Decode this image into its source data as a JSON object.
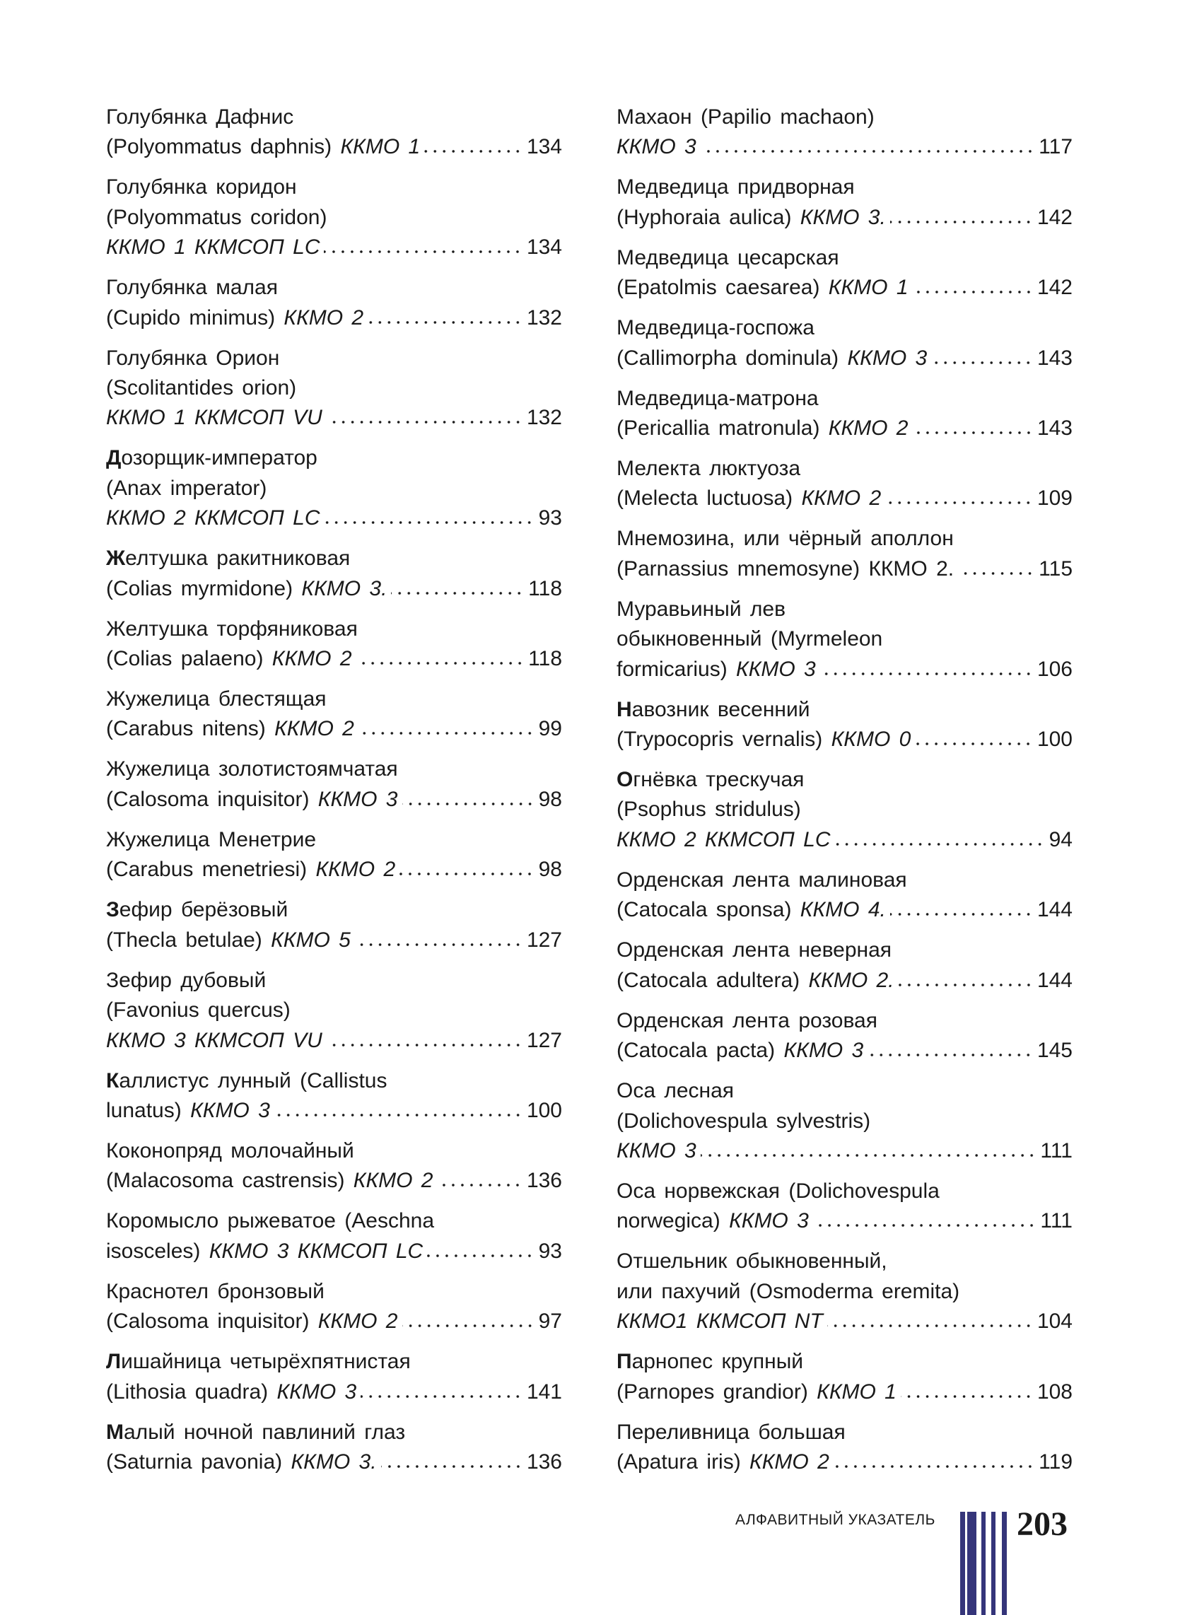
{
  "left_column": [
    {
      "lines": [
        "Голубянка Дафнис"
      ],
      "tail_plain": "(Polyommatus daphnis) ",
      "tail_italic": "ККМО 1",
      "page": "134"
    },
    {
      "lines": [
        "Голубянка коридон",
        "(Polyommatus coridon)"
      ],
      "tail_plain": "",
      "tail_italic": "ККМО 1 ККМСОП LC",
      "page": "134"
    },
    {
      "lines": [
        "Голубянка малая"
      ],
      "tail_plain": "(Cupido minimus) ",
      "tail_italic": "ККМО 2",
      "page": "132"
    },
    {
      "lines": [
        "Голубянка Орион",
        "(Scolitantides orion)"
      ],
      "tail_plain": "",
      "tail_italic": "ККМО 1 ККМСОП VU",
      "page": "132"
    },
    {
      "bold_initial": true,
      "lines": [
        "Дозорщик-император",
        "(Anax imperator)"
      ],
      "tail_plain": "",
      "tail_italic": "ККМО 2 ККМСОП LC",
      "page": "93"
    },
    {
      "bold_initial": true,
      "lines": [
        "Желтушка ракитниковая"
      ],
      "tail_plain": "(Colias myrmidone) ",
      "tail_italic": "ККМО 3.",
      "page": "118"
    },
    {
      "lines": [
        "Желтушка торфяниковая"
      ],
      "tail_plain": "(Colias palaeno) ",
      "tail_italic": "ККМО 2",
      "page": "118"
    },
    {
      "lines": [
        "Жужелица блестящая"
      ],
      "tail_plain": "(Carabus nitens) ",
      "tail_italic": "ККМО 2",
      "page": "99"
    },
    {
      "lines": [
        "Жужелица золотистоямчатая"
      ],
      "tail_plain": "(Calosoma inquisitor) ",
      "tail_italic": "ККМО 3",
      "page": "98"
    },
    {
      "lines": [
        "Жужелица Менетрие"
      ],
      "tail_plain": "(Carabus menetriesi) ",
      "tail_italic": "ККМО 2",
      "page": "98"
    },
    {
      "bold_initial": true,
      "lines": [
        "Зефир берёзовый"
      ],
      "tail_plain": "(Thecla betulae) ",
      "tail_italic": "ККМО 5",
      "page": "127"
    },
    {
      "lines": [
        "Зефир дубовый",
        "(Favonius quercus)"
      ],
      "tail_plain": "",
      "tail_italic": "ККМО 3 ККМСОП VU",
      "page": "127"
    },
    {
      "bold_initial": true,
      "lines": [
        "Каллистус лунный (Callistus"
      ],
      "tail_plain": "lunatus) ",
      "tail_italic": "ККМО 3",
      "page": "100"
    },
    {
      "lines": [
        "Коконопряд молочайный"
      ],
      "tail_plain": "(Malacosoma castrensis) ",
      "tail_italic": "ККМО 2",
      "page": "136"
    },
    {
      "lines": [
        "Коромысло рыжеватое (Aeschna"
      ],
      "tail_plain": "isosceles) ",
      "tail_italic": "ККМО 3 ККМСОП LC",
      "page": "93"
    },
    {
      "lines": [
        "Краснотел бронзовый"
      ],
      "tail_plain": "(Calosoma inquisitor) ",
      "tail_italic": "ККМО 2",
      "page": "97"
    },
    {
      "bold_initial": true,
      "lines": [
        "Лишайница четырёхпятнистая"
      ],
      "tail_plain": "(Lithosia quadra) ",
      "tail_italic": "ККМО 3",
      "page": "141"
    },
    {
      "bold_initial": true,
      "lines": [
        "Малый ночной павлиний глаз"
      ],
      "tail_plain": "(Saturnia pavonia) ",
      "tail_italic": "ККМО 3.",
      "page": "136"
    }
  ],
  "right_column": [
    {
      "lines": [
        "Махаон (Papilio machaon)"
      ],
      "tail_plain": "",
      "tail_italic": "ККМО 3",
      "page": "117"
    },
    {
      "lines": [
        "Медведица придворная"
      ],
      "tail_plain": "(Hyphoraia aulica) ",
      "tail_italic": "ККМО 3.",
      "page": "142"
    },
    {
      "lines": [
        "Медведица цесарская"
      ],
      "tail_plain": "(Epatolmis caesarea) ",
      "tail_italic": "ККМО 1",
      "page": "142"
    },
    {
      "lines": [
        "Медведица-госпожа"
      ],
      "tail_plain": "(Callimorpha dominula) ",
      "tail_italic": "ККМО 3",
      "page": "143"
    },
    {
      "lines": [
        "Медведица-матрона"
      ],
      "tail_plain": "(Pericallia matronula) ",
      "tail_italic": "ККМО 2",
      "page": "143"
    },
    {
      "lines": [
        "Мелекта люктуоза"
      ],
      "tail_plain": "(Melecta luctuosa) ",
      "tail_italic": "ККМО 2",
      "page": "109"
    },
    {
      "lines": [
        "Мнемозина, или чёрный аполлон"
      ],
      "tail_plain": "(Parnassius mnemosyne) ККМО 2.",
      "tail_italic": "",
      "page": "115"
    },
    {
      "lines": [
        "Муравьиный лев",
        "обыкновенный (Myrmeleon"
      ],
      "tail_plain": "formicarius) ",
      "tail_italic": "ККМО 3",
      "page": "106"
    },
    {
      "bold_initial": true,
      "lines": [
        "Навозник весенний"
      ],
      "tail_plain": "(Trypocopris vernalis) ",
      "tail_italic": "ККМО 0",
      "page": "100"
    },
    {
      "bold_initial": true,
      "lines": [
        "Огнёвка трескучая",
        "(Psophus stridulus)"
      ],
      "tail_plain": "",
      "tail_italic": "ККМО 2 ККМСОП LC",
      "page": "94"
    },
    {
      "lines": [
        "Орденская лента малиновая"
      ],
      "tail_plain": "(Catocala sponsa) ",
      "tail_italic": "ККМО 4.",
      "page": "144"
    },
    {
      "lines": [
        "Орденская лента неверная"
      ],
      "tail_plain": "(Catocala adultera) ",
      "tail_italic": "ККМО 2.",
      "page": "144"
    },
    {
      "lines": [
        "Орденская лента розовая"
      ],
      "tail_plain": "(Catocala pacta) ",
      "tail_italic": "ККМО 3",
      "page": "145"
    },
    {
      "lines": [
        "Оса лесная",
        "(Dolichovespula sylvestris)"
      ],
      "tail_plain": "",
      "tail_italic": "ККМО 3",
      "page": "111"
    },
    {
      "lines": [
        "Оса норвежская (Dolichovespula"
      ],
      "tail_plain": "norwegica) ",
      "tail_italic": "ККМО 3",
      "page": "111"
    },
    {
      "lines": [
        "Отшельник обыкновенный,",
        "или пахучий (Osmoderma eremita)"
      ],
      "tail_plain": "",
      "tail_italic": "ККМО1 ККМСОП NT",
      "page": "104"
    },
    {
      "bold_initial": true,
      "lines": [
        "Парнопес крупный"
      ],
      "tail_plain": "(Parnopes grandior) ",
      "tail_italic": "ККМО 1",
      "page": "108"
    },
    {
      "lines": [
        "Переливница большая"
      ],
      "tail_plain": "(Apatura iris) ",
      "tail_italic": "ККМО 2",
      "page": "119"
    }
  ],
  "footer": {
    "section_title": "АЛФАВИТНЫЙ УКАЗАТЕЛЬ",
    "page_number": "203",
    "bar_color": "#35357a"
  }
}
